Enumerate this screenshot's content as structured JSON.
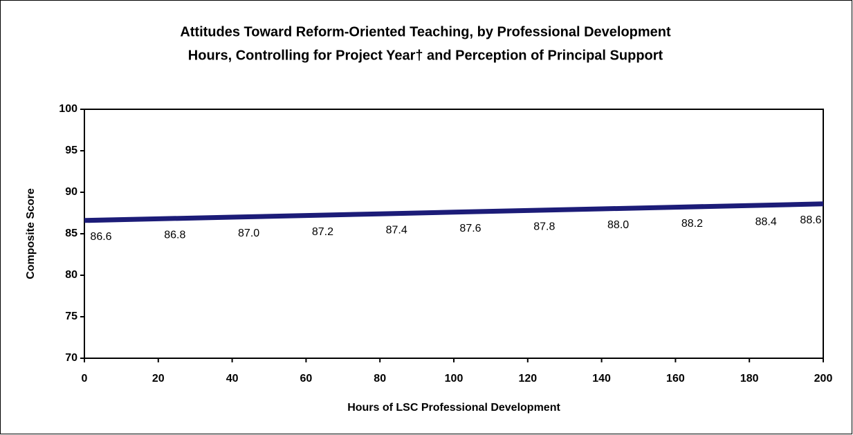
{
  "chart_data": {
    "type": "line",
    "title": [
      "Attitudes Toward Reform-Oriented Teaching, by Professional Development",
      "Hours, Controlling for Project Year† and Perception of Principal Support"
    ],
    "x_label": "Hours of LSC Professional Development",
    "y_label": "Composite Score",
    "x": [
      0,
      20,
      40,
      60,
      80,
      100,
      120,
      140,
      160,
      180,
      200
    ],
    "values": [
      86.6,
      86.8,
      87.0,
      87.2,
      87.4,
      87.6,
      87.8,
      88.0,
      88.2,
      88.4,
      88.6
    ],
    "value_labels": [
      "86.6",
      "86.8",
      "87.0",
      "87.2",
      "87.4",
      "87.6",
      "87.8",
      "88.0",
      "88.2",
      "88.4",
      "88.6"
    ],
    "color": "#1c1c78",
    "xlim": [
      0,
      200
    ],
    "xticks": [
      0,
      20,
      40,
      60,
      80,
      100,
      120,
      140,
      160,
      180,
      200
    ],
    "ylim": [
      70,
      100
    ],
    "yticks": [
      70,
      75,
      80,
      85,
      90,
      95,
      100
    ],
    "grid": false
  }
}
